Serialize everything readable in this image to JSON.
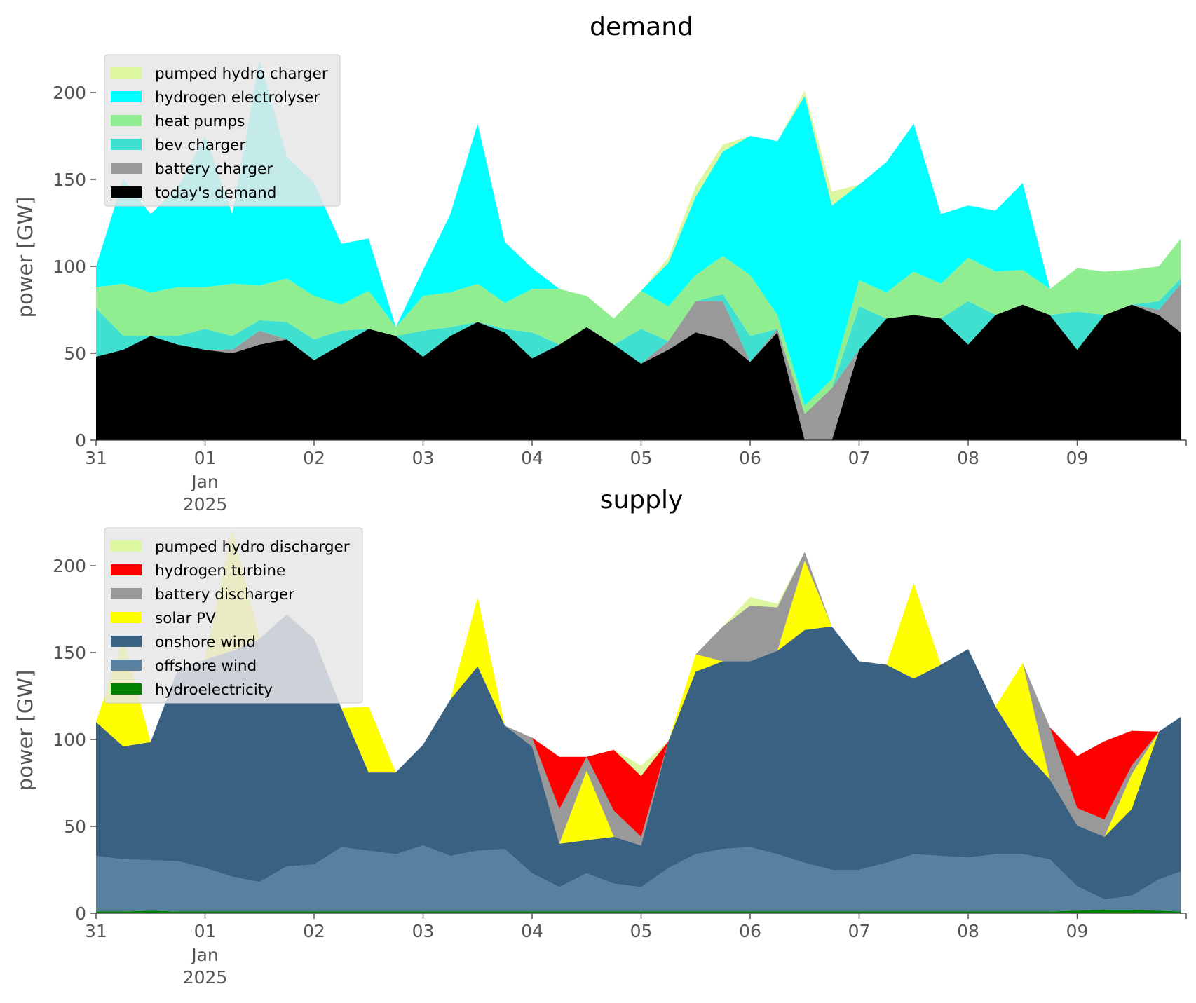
{
  "chart_data": [
    {
      "type": "area",
      "stacked": true,
      "title": "demand",
      "ylabel": "power [GW]",
      "xlabel": "",
      "ylim": [
        0,
        225
      ],
      "yticks": [
        0,
        50,
        100,
        150,
        200
      ],
      "x_tick_labels": [
        "31",
        "01",
        "02",
        "03",
        "04",
        "05",
        "06",
        "07",
        "08",
        "09"
      ],
      "x_tick_sublabels": [
        "Jan",
        "2025"
      ],
      "x": [
        0,
        0.25,
        0.5,
        0.75,
        1,
        1.25,
        1.5,
        1.75,
        2,
        2.25,
        2.5,
        2.75,
        3,
        3.25,
        3.5,
        3.75,
        4,
        4.25,
        4.5,
        4.75,
        5,
        5.25,
        5.5,
        5.75,
        6,
        6.25,
        6.5,
        6.75,
        7,
        7.25,
        7.5,
        7.75,
        8,
        8.25,
        8.5,
        8.75,
        9,
        9.25,
        9.5,
        9.75,
        9.95
      ],
      "legend_position": "upper left",
      "grid": false,
      "series": [
        {
          "name": "today's demand",
          "color": "#000000",
          "values": [
            48,
            52,
            60,
            55,
            52,
            50,
            55,
            58,
            46,
            55,
            64,
            60,
            48,
            60,
            68,
            62,
            47,
            55,
            65,
            55,
            44,
            52,
            62,
            58,
            45,
            62,
            0,
            0,
            52,
            70,
            72,
            70,
            55,
            72,
            78,
            72,
            52,
            72,
            78,
            72,
            62
          ]
        },
        {
          "name": "battery charger",
          "color": "#999999",
          "values": [
            0,
            0,
            0,
            0,
            0,
            2,
            8,
            0,
            0,
            0,
            0,
            0,
            0,
            0,
            0,
            0,
            0,
            0,
            0,
            0,
            0,
            5,
            18,
            22,
            0,
            2,
            15,
            30,
            0,
            0,
            0,
            0,
            0,
            0,
            0,
            0,
            0,
            0,
            0,
            3,
            28
          ]
        },
        {
          "name": "bev charger",
          "color": "#40e0d0",
          "values": [
            28,
            8,
            0,
            5,
            12,
            8,
            6,
            10,
            12,
            8,
            0,
            0,
            15,
            5,
            0,
            2,
            15,
            0,
            0,
            0,
            20,
            0,
            0,
            4,
            15,
            0,
            0,
            0,
            25,
            0,
            0,
            0,
            25,
            0,
            0,
            0,
            22,
            0,
            0,
            5,
            3
          ]
        },
        {
          "name": "heat pumps",
          "color": "#90ee90",
          "values": [
            12,
            30,
            25,
            28,
            24,
            30,
            20,
            25,
            25,
            15,
            22,
            5,
            20,
            20,
            22,
            15,
            25,
            32,
            18,
            15,
            22,
            20,
            15,
            22,
            35,
            8,
            5,
            5,
            15,
            15,
            25,
            20,
            25,
            25,
            20,
            15,
            25,
            25,
            20,
            20,
            23
          ]
        },
        {
          "name": "hydrogen electrolyser",
          "color": "#00ffff",
          "values": [
            12,
            60,
            45,
            57,
            87,
            40,
            130,
            70,
            65,
            35,
            30,
            0,
            15,
            45,
            92,
            35,
            12,
            0,
            0,
            0,
            0,
            25,
            45,
            60,
            80,
            100,
            178,
            100,
            55,
            75,
            85,
            40,
            30,
            35,
            50,
            0,
            0,
            0,
            0,
            0,
            0
          ]
        },
        {
          "name": "pumped hydro charger",
          "color": "#dcf7a0",
          "values": [
            0,
            0,
            0,
            0,
            0,
            0,
            0,
            0,
            0,
            0,
            0,
            0,
            0,
            0,
            0,
            0,
            0,
            0,
            0,
            0,
            0,
            3,
            6,
            4,
            0,
            0,
            3,
            8,
            0,
            0,
            0,
            0,
            0,
            0,
            0,
            0,
            0,
            0,
            0,
            0,
            0
          ]
        }
      ]
    },
    {
      "type": "area",
      "stacked": true,
      "title": "supply",
      "ylabel": "power [GW]",
      "xlabel": "",
      "ylim": [
        0,
        225
      ],
      "yticks": [
        0,
        50,
        100,
        150,
        200
      ],
      "x_tick_labels": [
        "31",
        "01",
        "02",
        "03",
        "04",
        "05",
        "06",
        "07",
        "08",
        "09"
      ],
      "x_tick_sublabels": [
        "Jan",
        "2025"
      ],
      "x": [
        0,
        0.25,
        0.5,
        0.75,
        1,
        1.25,
        1.5,
        1.75,
        2,
        2.25,
        2.5,
        2.75,
        3,
        3.25,
        3.5,
        3.75,
        4,
        4.25,
        4.5,
        4.75,
        5,
        5.25,
        5.5,
        5.75,
        6,
        6.25,
        6.5,
        6.75,
        7,
        7.25,
        7.5,
        7.75,
        8,
        8.25,
        8.5,
        8.75,
        9,
        9.25,
        9.5,
        9.75,
        9.95
      ],
      "legend_position": "upper left",
      "grid": false,
      "series": [
        {
          "name": "hydroelectricity",
          "color": "#008000",
          "values": [
            1,
            1,
            1.5,
            1,
            1,
            1,
            1,
            1,
            1,
            1,
            1,
            1,
            1,
            1,
            1,
            1,
            1,
            1,
            1,
            1,
            1,
            1,
            1,
            1,
            1,
            1,
            1,
            1,
            1,
            1,
            1,
            1,
            1,
            1,
            1,
            1,
            1.5,
            2,
            2,
            1.5,
            1
          ]
        },
        {
          "name": "offshore wind",
          "color": "#5a80a0",
          "values": [
            32,
            30,
            29,
            29,
            25,
            20,
            17,
            26,
            27,
            37,
            35,
            33,
            38,
            32,
            35,
            36,
            22,
            14,
            22,
            16,
            14,
            25,
            33,
            36,
            37,
            33,
            28,
            24,
            24,
            28,
            33,
            32,
            31,
            33,
            33,
            30,
            14,
            6,
            8,
            18,
            23
          ]
        },
        {
          "name": "onshore wind",
          "color": "#3b6182",
          "values": [
            77,
            65,
            68,
            110,
            120,
            130,
            140,
            145,
            130,
            80,
            45,
            47,
            58,
            90,
            106,
            71,
            73,
            25,
            19,
            27,
            24,
            73,
            105,
            108,
            107,
            117,
            134,
            140,
            120,
            114,
            101,
            110,
            120,
            85,
            60,
            46,
            35,
            36,
            50,
            85,
            89
          ]
        },
        {
          "name": "solar PV",
          "color": "#ffff00",
          "values": [
            0,
            62,
            0,
            0,
            0,
            70,
            0,
            0,
            0,
            0,
            38,
            0,
            0,
            0,
            40,
            0,
            0,
            0,
            40,
            0,
            0,
            0,
            10,
            0,
            0,
            0,
            40,
            0,
            0,
            0,
            55,
            0,
            0,
            0,
            50,
            0,
            0,
            0,
            20,
            0,
            0
          ]
        },
        {
          "name": "battery discharger",
          "color": "#999999",
          "values": [
            0,
            0,
            0,
            0,
            0,
            0,
            0,
            0,
            0,
            0,
            0,
            0,
            0,
            0,
            0,
            0,
            5,
            20,
            8,
            15,
            5,
            0,
            0,
            20,
            32,
            25,
            5,
            0,
            0,
            0,
            0,
            0,
            0,
            0,
            0,
            30,
            10,
            10,
            5,
            0,
            0
          ]
        },
        {
          "name": "hydrogen turbine",
          "color": "#ff0000",
          "values": [
            0,
            0,
            0,
            0,
            0,
            0,
            0,
            0,
            0,
            0,
            0,
            0,
            0,
            0,
            0,
            0,
            0,
            30,
            0,
            35,
            35,
            0,
            0,
            0,
            0,
            0,
            0,
            0,
            0,
            0,
            0,
            0,
            0,
            0,
            0,
            0,
            30,
            45,
            20,
            0,
            0
          ]
        },
        {
          "name": "pumped hydro discharger",
          "color": "#dcf7a0",
          "values": [
            0,
            0,
            0,
            0,
            0,
            0,
            0,
            0,
            0,
            0,
            0,
            0,
            0,
            0,
            0,
            0,
            0,
            0,
            0,
            0,
            6,
            0,
            0,
            0,
            5,
            2,
            0,
            0,
            0,
            0,
            0,
            0,
            0,
            0,
            0,
            0,
            0,
            0,
            0,
            0,
            0
          ]
        }
      ]
    }
  ]
}
